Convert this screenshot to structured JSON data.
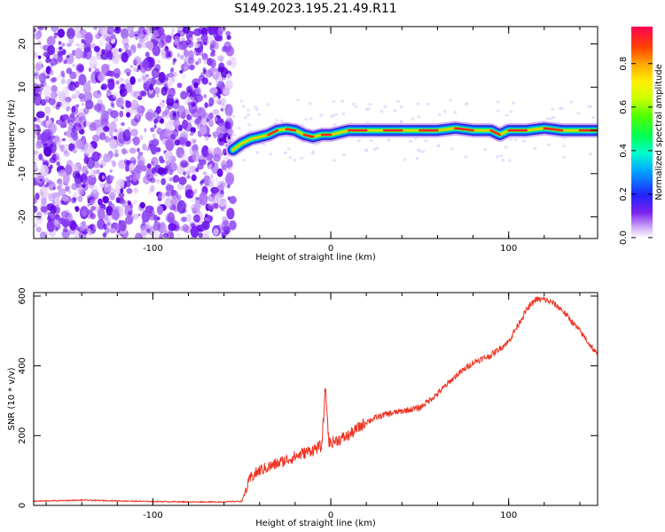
{
  "title": "S149.2023.195.21.49.R11",
  "chart_data": [
    {
      "type": "heatmap",
      "xlabel": "Height of straight line (km)",
      "ylabel": "Frequency (Hz)",
      "xlim": [
        -167,
        150
      ],
      "ylim": [
        -25,
        24
      ],
      "xticks": [
        -100,
        0,
        100
      ],
      "yticks": [
        -20,
        -10,
        0,
        10,
        20
      ],
      "noise_region_x": [
        -167,
        -55
      ],
      "signal_track": {
        "x": [
          -55,
          -50,
          -45,
          -40,
          -35,
          -30,
          -25,
          -20,
          -15,
          -10,
          -5,
          0,
          10,
          20,
          30,
          40,
          50,
          60,
          70,
          80,
          90,
          95,
          100,
          110,
          120,
          130,
          140,
          150
        ],
        "y": [
          -4.5,
          -3,
          -2,
          -1.5,
          -1,
          0,
          0.3,
          0,
          -1,
          -1.5,
          -1,
          -1,
          0,
          0,
          0,
          0,
          0,
          0,
          0.5,
          0,
          0,
          -1,
          0,
          0,
          0.5,
          0,
          0,
          0
        ]
      },
      "colorbar": {
        "label": "Normalized spectral amplitude",
        "range": [
          0,
          0.97
        ],
        "ticks": [
          0.0,
          0.2,
          0.4,
          0.6,
          0.8
        ]
      }
    },
    {
      "type": "line",
      "xlabel": "Height of straight line (km)",
      "ylabel": "SNR (10 * v/v)",
      "xlim": [
        -167,
        150
      ],
      "ylim": [
        0,
        610
      ],
      "xticks": [
        -100,
        0,
        100
      ],
      "yticks": [
        0,
        200,
        400,
        600
      ],
      "color": "#ee3322",
      "x": [
        -167,
        -140,
        -110,
        -80,
        -60,
        -50,
        -48,
        -45,
        -40,
        -30,
        -20,
        -10,
        -5,
        -3,
        -1,
        0,
        10,
        20,
        30,
        40,
        50,
        60,
        70,
        80,
        90,
        100,
        110,
        115,
        120,
        125,
        130,
        140,
        150
      ],
      "y": [
        12,
        15,
        12,
        10,
        10,
        12,
        40,
        80,
        100,
        120,
        140,
        160,
        170,
        340,
        180,
        180,
        200,
        240,
        260,
        270,
        280,
        320,
        370,
        410,
        430,
        470,
        560,
        590,
        590,
        580,
        560,
        500,
        430
      ]
    }
  ]
}
